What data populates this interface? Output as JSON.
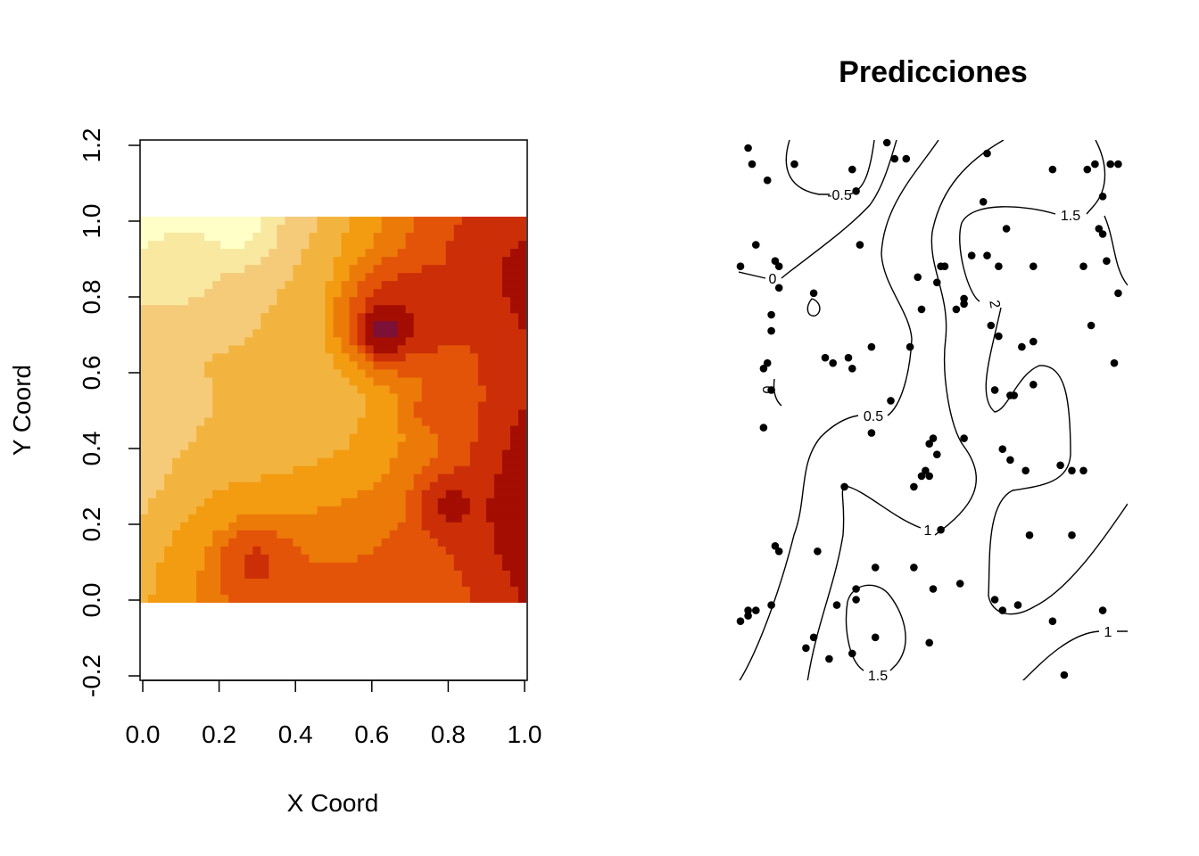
{
  "chart_data": [
    {
      "type": "heatmap",
      "title": "",
      "xlabel": "X Coord",
      "ylabel": "Y Coord",
      "xlim": [
        0.0,
        1.0
      ],
      "ylim": [
        -0.2,
        1.2
      ],
      "x_ticks": [
        "0.0",
        "0.2",
        "0.4",
        "0.6",
        "0.8",
        "1.0"
      ],
      "y_ticks": [
        "-0.2",
        "0.0",
        "0.2",
        "0.4",
        "0.6",
        "0.8",
        "1.0",
        "1.2"
      ],
      "grid": false,
      "data_extent": {
        "x": [
          0.0,
          1.0
        ],
        "y": [
          0.0,
          1.0
        ]
      },
      "palette": [
        "#FFFFC8",
        "#F8E8A0",
        "#F5CB7A",
        "#F3B43F",
        "#F39C12",
        "#EC7A08",
        "#E35409",
        "#CC2F07",
        "#A40D02",
        "#7C1037"
      ],
      "regions": [
        {
          "level": 0,
          "cx": 0.25,
          "cy": 0.97,
          "r": 0.12
        },
        {
          "level": 1,
          "cx": 0.1,
          "cy": 0.86,
          "r": 0.14
        },
        {
          "level": 2,
          "cx": 0.05,
          "cy": 0.52,
          "r": 0.15
        },
        {
          "level": 8,
          "cx": 0.66,
          "cy": 0.73,
          "r": 0.2
        },
        {
          "level": 9,
          "cx": 0.63,
          "cy": 0.7,
          "r": 0.09
        },
        {
          "level": 8,
          "cx": 0.8,
          "cy": 0.25,
          "r": 0.12
        },
        {
          "level": 7,
          "cx": 0.3,
          "cy": 0.1,
          "r": 0.14
        },
        {
          "level": 6,
          "cx": 0.75,
          "cy": 0.5,
          "r": 0.1
        }
      ]
    },
    {
      "type": "contour",
      "title": "Predicciones",
      "xlabel": "",
      "ylabel": "",
      "xlim": [
        0.0,
        1.0
      ],
      "ylim": [
        0.0,
        1.0
      ],
      "axes": false,
      "contour_levels": [
        "-0.5",
        "0",
        "0.5",
        "1",
        "1.5",
        "2"
      ],
      "contour_labels": [
        "-0.5",
        "0",
        "0",
        "0.5",
        "1",
        "1",
        "1.5",
        "1.5",
        "2"
      ],
      "points": [
        [
          0.02,
          0.99
        ],
        [
          0.03,
          0.96
        ],
        [
          0.07,
          0.93
        ],
        [
          0.14,
          0.96
        ],
        [
          0.29,
          0.95
        ],
        [
          0.3,
          0.91
        ],
        [
          0.38,
          1.0
        ],
        [
          0.4,
          0.97
        ],
        [
          0.43,
          0.97
        ],
        [
          0.64,
          0.98
        ],
        [
          0.81,
          0.95
        ],
        [
          0.9,
          0.95
        ],
        [
          0.92,
          0.96
        ],
        [
          0.96,
          0.96
        ],
        [
          0.98,
          0.96
        ],
        [
          0.94,
          0.9
        ],
        [
          0.63,
          0.89
        ],
        [
          0.69,
          0.84
        ],
        [
          0.04,
          0.81
        ],
        [
          0.31,
          0.81
        ],
        [
          0.93,
          0.84
        ],
        [
          0.94,
          0.83
        ],
        [
          0.0,
          0.77
        ],
        [
          0.09,
          0.78
        ],
        [
          0.1,
          0.77
        ],
        [
          0.52,
          0.77
        ],
        [
          0.53,
          0.77
        ],
        [
          0.6,
          0.79
        ],
        [
          0.64,
          0.79
        ],
        [
          0.67,
          0.77
        ],
        [
          0.76,
          0.77
        ],
        [
          0.89,
          0.77
        ],
        [
          0.95,
          0.78
        ],
        [
          0.98,
          0.72
        ],
        [
          0.46,
          0.75
        ],
        [
          0.1,
          0.73
        ],
        [
          0.08,
          0.68
        ],
        [
          0.19,
          0.72
        ],
        [
          0.51,
          0.74
        ],
        [
          0.56,
          0.69
        ],
        [
          0.58,
          0.71
        ],
        [
          0.58,
          0.7
        ],
        [
          0.47,
          0.69
        ],
        [
          0.65,
          0.66
        ],
        [
          0.08,
          0.65
        ],
        [
          0.34,
          0.62
        ],
        [
          0.44,
          0.62
        ],
        [
          0.91,
          0.66
        ],
        [
          0.73,
          0.62
        ],
        [
          0.76,
          0.63
        ],
        [
          0.67,
          0.64
        ],
        [
          0.06,
          0.58
        ],
        [
          0.07,
          0.59
        ],
        [
          0.22,
          0.6
        ],
        [
          0.24,
          0.59
        ],
        [
          0.28,
          0.6
        ],
        [
          0.29,
          0.58
        ],
        [
          0.97,
          0.59
        ],
        [
          0.08,
          0.54
        ],
        [
          0.39,
          0.52
        ],
        [
          0.7,
          0.53
        ],
        [
          0.71,
          0.53
        ],
        [
          0.66,
          0.54
        ],
        [
          0.76,
          0.55
        ],
        [
          0.06,
          0.47
        ],
        [
          0.34,
          0.46
        ],
        [
          0.49,
          0.44
        ],
        [
          0.5,
          0.45
        ],
        [
          0.51,
          0.42
        ],
        [
          0.58,
          0.45
        ],
        [
          0.68,
          0.43
        ],
        [
          0.7,
          0.41
        ],
        [
          0.83,
          0.4
        ],
        [
          0.47,
          0.38
        ],
        [
          0.48,
          0.39
        ],
        [
          0.49,
          0.38
        ],
        [
          0.74,
          0.39
        ],
        [
          0.27,
          0.36
        ],
        [
          0.45,
          0.36
        ],
        [
          0.86,
          0.39
        ],
        [
          0.89,
          0.39
        ],
        [
          0.52,
          0.28
        ],
        [
          0.75,
          0.27
        ],
        [
          0.09,
          0.25
        ],
        [
          0.1,
          0.24
        ],
        [
          0.2,
          0.24
        ],
        [
          0.86,
          0.27
        ],
        [
          0.35,
          0.21
        ],
        [
          0.45,
          0.21
        ],
        [
          0.5,
          0.17
        ],
        [
          0.57,
          0.18
        ],
        [
          0.66,
          0.15
        ],
        [
          0.02,
          0.12
        ],
        [
          0.04,
          0.13
        ],
        [
          0.08,
          0.14
        ],
        [
          0.3,
          0.17
        ],
        [
          0.3,
          0.15
        ],
        [
          0.25,
          0.14
        ],
        [
          0.81,
          0.11
        ],
        [
          0.94,
          0.13
        ],
        [
          0.19,
          0.08
        ],
        [
          0.17,
          0.06
        ],
        [
          0.35,
          0.08
        ],
        [
          0.23,
          0.04
        ],
        [
          0.29,
          0.05
        ],
        [
          0.49,
          0.07
        ],
        [
          0.68,
          0.13
        ],
        [
          0.72,
          0.14
        ],
        [
          0.84,
          0.01
        ],
        [
          0.0,
          0.11
        ],
        [
          0.02,
          0.13
        ]
      ]
    }
  ]
}
